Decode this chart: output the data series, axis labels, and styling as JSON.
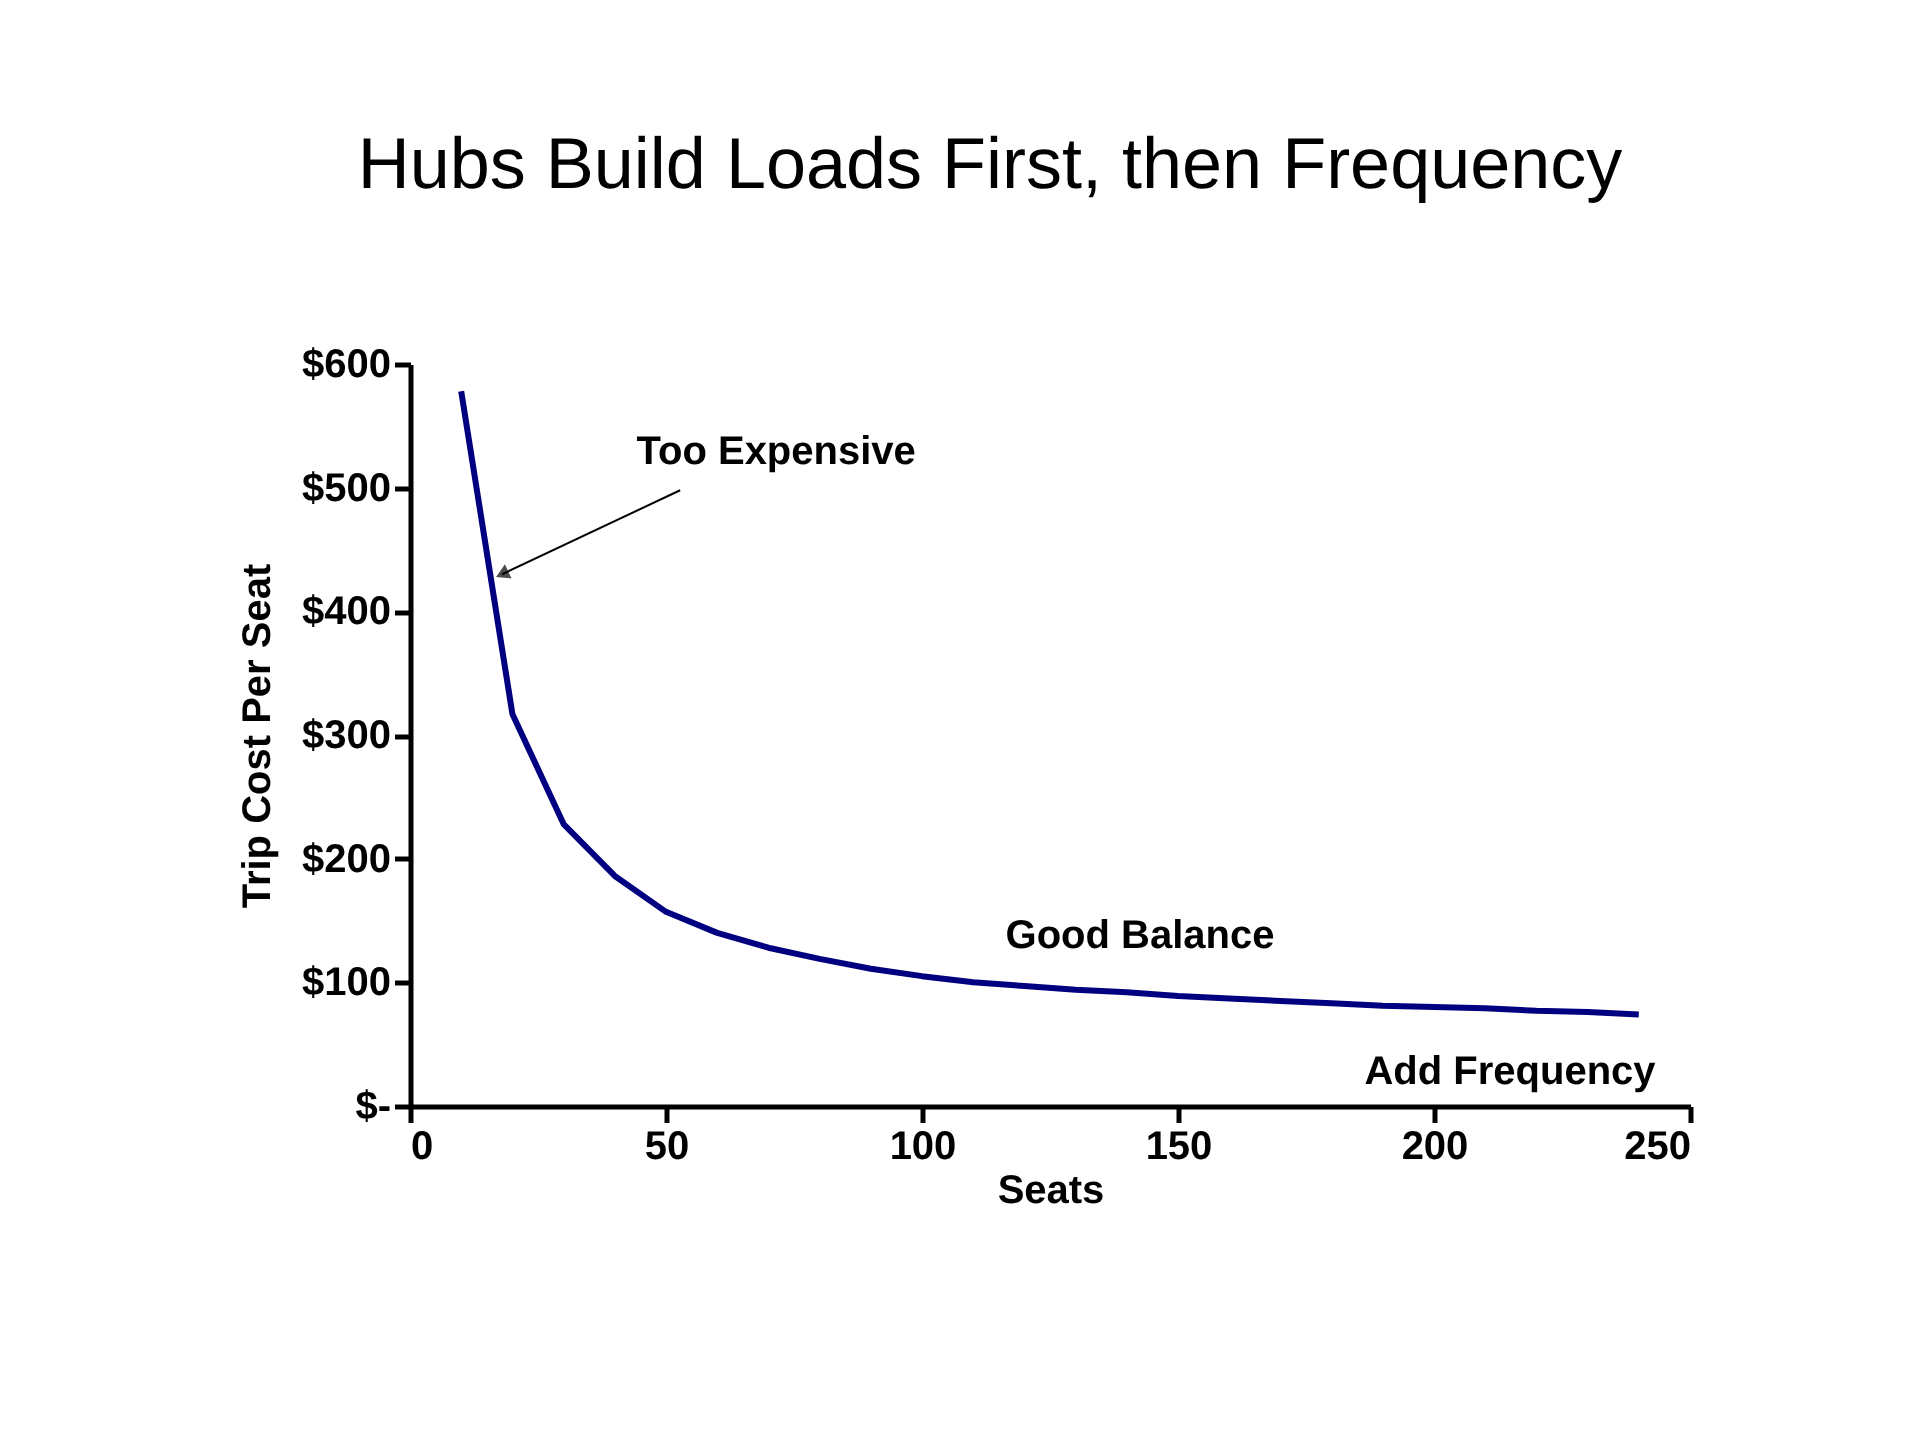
{
  "chart_data": {
    "type": "line",
    "title": "Hubs Build Loads First,  then Frequency",
    "xlabel": "Seats",
    "ylabel": "Trip Cost Per Seat",
    "x": [
      10,
      20,
      30,
      40,
      50,
      60,
      70,
      80,
      90,
      100,
      110,
      120,
      130,
      140,
      150,
      160,
      170,
      180,
      190,
      200,
      210,
      220,
      230,
      240
    ],
    "series": [
      {
        "color": "#000080",
        "values": [
          578,
          317,
          228,
          186,
          157,
          140,
          128,
          119,
          111,
          105,
          100,
          97,
          94,
          92,
          89,
          87,
          85,
          83,
          81,
          80,
          79,
          77,
          76,
          74
        ]
      }
    ],
    "xlim": [
      0,
      250
    ],
    "xticks": [
      0,
      50,
      100,
      150,
      200,
      250
    ],
    "ylim": [
      0,
      600
    ],
    "yticks": [
      {
        "value": 0,
        "label": "$-"
      },
      {
        "value": 100,
        "label": "$100"
      },
      {
        "value": 200,
        "label": "$200"
      },
      {
        "value": 300,
        "label": "$300"
      },
      {
        "value": 400,
        "label": "$400"
      },
      {
        "value": 500,
        "label": "$500"
      },
      {
        "value": 600,
        "label": "$600"
      }
    ],
    "annotations": [
      {
        "text": "Too Expensive",
        "x": 18,
        "y": 430
      },
      "Good Balance",
      "Add Frequency"
    ],
    "grid": false,
    "marker": "none",
    "line_style": "solid"
  }
}
